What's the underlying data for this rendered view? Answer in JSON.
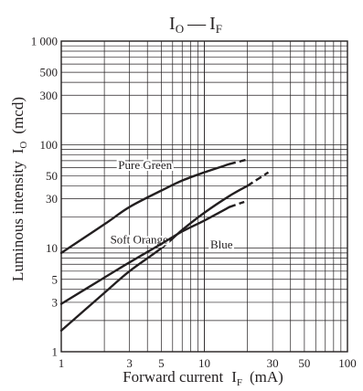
{
  "chart_data": {
    "type": "line",
    "title": {
      "main": "I",
      "main_sub": "O",
      "dash": "—",
      "second": "I",
      "second_sub": "F"
    },
    "x_axis": {
      "label": "Forward current",
      "symbol": "I",
      "symbol_sub": "F",
      "unit": "(mA)",
      "scale": "log",
      "range": [
        1,
        100
      ],
      "tick_labels": [
        {
          "value": 1,
          "text": "1"
        },
        {
          "value": 3,
          "text": "3"
        },
        {
          "value": 5,
          "text": "5"
        },
        {
          "value": 10,
          "text": "10"
        },
        {
          "value": 30,
          "text": "30"
        },
        {
          "value": 50,
          "text": "50"
        },
        {
          "value": 100,
          "text": "100"
        }
      ]
    },
    "y_axis": {
      "label": "Luminous intensity",
      "symbol": "I",
      "symbol_sub": "O",
      "unit": "(mcd)",
      "scale": "log",
      "range": [
        1,
        1000
      ],
      "tick_labels": [
        {
          "value": 1,
          "text": "1"
        },
        {
          "value": 3,
          "text": "3"
        },
        {
          "value": 5,
          "text": "5"
        },
        {
          "value": 10,
          "text": "10"
        },
        {
          "value": 30,
          "text": "30"
        },
        {
          "value": 50,
          "text": "50"
        },
        {
          "value": 100,
          "text": "100"
        },
        {
          "value": 300,
          "text": "300"
        },
        {
          "value": 500,
          "text": "500"
        },
        {
          "value": 1000,
          "text": "1 000"
        }
      ]
    },
    "grid": true,
    "series": [
      {
        "name": "Pure Green",
        "points": [
          [
            1,
            9
          ],
          [
            2,
            17
          ],
          [
            3,
            25
          ],
          [
            5,
            36
          ],
          [
            7,
            45
          ],
          [
            10,
            54
          ],
          [
            15,
            65
          ]
        ],
        "dashed_points": [
          [
            15,
            65
          ],
          [
            20,
            72
          ]
        ],
        "label_anchor": [
          2.5,
          63
        ]
      },
      {
        "name": "Soft Orange",
        "points": [
          [
            1,
            1.6
          ],
          [
            2,
            3.7
          ],
          [
            3,
            6
          ],
          [
            5,
            10
          ],
          [
            7,
            15
          ],
          [
            10,
            22
          ],
          [
            15,
            32
          ],
          [
            20,
            40
          ]
        ],
        "dashed_points": [
          [
            20,
            40
          ],
          [
            28,
            54
          ]
        ],
        "label_anchor": [
          2.2,
          12
        ]
      },
      {
        "name": "Blue",
        "points": [
          [
            1,
            2.9
          ],
          [
            2,
            5.2
          ],
          [
            3,
            7.3
          ],
          [
            5,
            11
          ],
          [
            7,
            14.5
          ],
          [
            10,
            18.5
          ],
          [
            15,
            25
          ]
        ],
        "dashed_points": [
          [
            15,
            25
          ],
          [
            19,
            28
          ]
        ],
        "label_anchor": [
          11,
          10.8
        ]
      }
    ],
    "colors": {
      "line": "#231f20",
      "grid": "#231f20",
      "text": "#231f20"
    }
  }
}
